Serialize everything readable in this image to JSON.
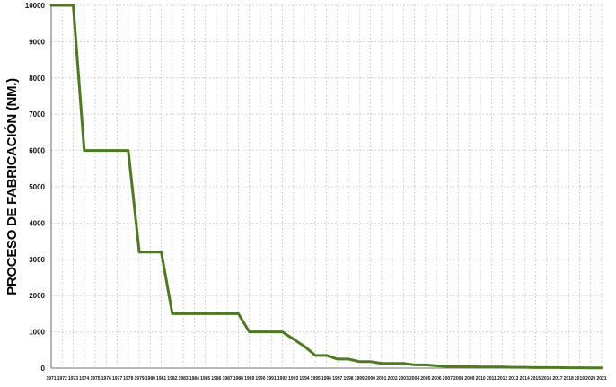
{
  "colors": {
    "line": "#4e7a1f"
  },
  "chart_data": {
    "type": "line",
    "title": "",
    "xlabel": "",
    "ylabel": "PROCESO DE FABRICACIÓN (NM.)",
    "ylim": [
      0,
      10000
    ],
    "grid": true,
    "yticks": [
      "0",
      "1000",
      "2000",
      "3000",
      "4000",
      "5000",
      "6000",
      "7000",
      "8000",
      "9000",
      "10000"
    ],
    "categories": [
      "1971",
      "1972",
      "1973",
      "1974",
      "1975",
      "1976",
      "1977",
      "1978",
      "1979",
      "1980",
      "1981",
      "1982",
      "1983",
      "1984",
      "1985",
      "1986",
      "1987",
      "1988",
      "1989",
      "1990",
      "1991",
      "1992",
      "1993",
      "1994",
      "1995",
      "1996",
      "1997",
      "1998",
      "1999",
      "2000",
      "2001",
      "2002",
      "2003",
      "2004",
      "2005",
      "2006",
      "2007",
      "2008",
      "2009",
      "2010",
      "2011",
      "2012",
      "2013",
      "2014",
      "2015",
      "2016",
      "2017",
      "2018",
      "2019",
      "2020",
      "2021"
    ],
    "series": [
      {
        "values": [
          10000,
          10000,
          10000,
          6000,
          6000,
          6000,
          6000,
          6000,
          3200,
          3200,
          3200,
          1500,
          1500,
          1500,
          1500,
          1500,
          1500,
          1500,
          1000,
          1000,
          1000,
          1000,
          800,
          600,
          350,
          350,
          250,
          250,
          180,
          180,
          130,
          130,
          130,
          90,
          90,
          65,
          45,
          45,
          45,
          32,
          32,
          32,
          22,
          22,
          14,
          14,
          14,
          10,
          10,
          7,
          7
        ]
      }
    ]
  }
}
